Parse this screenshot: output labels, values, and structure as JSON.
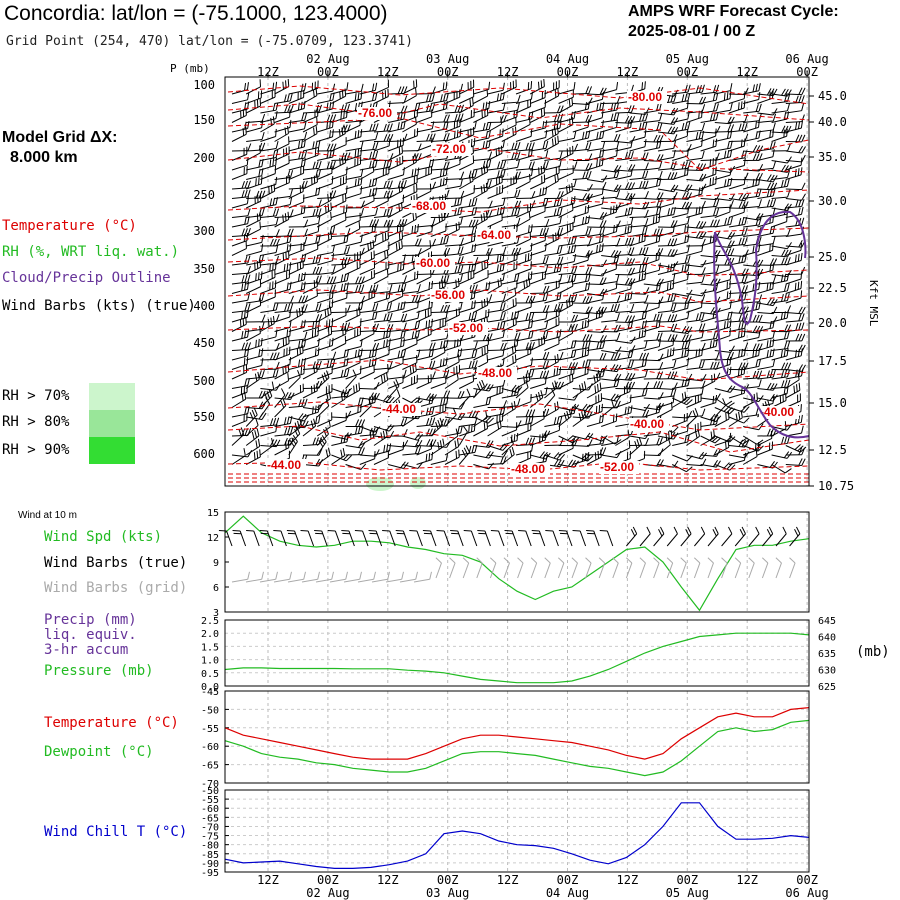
{
  "header": {
    "title": "Concordia:  lat/lon = (-75.1000, 123.4000)",
    "subtitle": "Grid Point (254, 470) lat/lon = (-75.0709, 123.3741)",
    "cycle_line1": "AMPS WRF Forecast Cycle:",
    "cycle_line2": "2025-08-01 / 00  Z",
    "grid_line1": "Model Grid ΔX:",
    "grid_line2": "8.000 km"
  },
  "legend": {
    "temperature": "Temperature (°C)",
    "rh": "RH (%, WRT liq. wat.)",
    "cloud": "Cloud/Precip Outline",
    "wind": "Wind Barbs (kts) (true)",
    "rh70": "RH > 70%",
    "rh80": "RH > 80%",
    "rh90": "RH > 90%",
    "rh_colors": [
      "#ccf5cc",
      "#99e699",
      "#33dd33"
    ]
  },
  "time_axis": {
    "top_dates": [
      "02 Aug",
      "03 Aug",
      "04 Aug",
      "05 Aug",
      "06 Aug"
    ],
    "top_times": [
      "12Z",
      "00Z",
      "12Z",
      "00Z",
      "12Z",
      "00Z",
      "12Z",
      "00Z",
      "12Z",
      "00Z"
    ],
    "bottom_times": [
      "12Z",
      "00Z",
      "12Z",
      "00Z",
      "12Z",
      "00Z",
      "12Z",
      "00Z",
      "12Z",
      "00Z"
    ],
    "bottom_dates": [
      "02 Aug",
      "03 Aug",
      "04 Aug",
      "05 Aug",
      "06 Aug"
    ]
  },
  "colors": {
    "temperature": "#dd0000",
    "rh": "#22bb22",
    "cloud": "#663399",
    "wind": "#000000",
    "wind_grid": "#aaaaaa",
    "wind_chill": "#0000cc",
    "grid": "#bbbbbb"
  },
  "chart_data": [
    {
      "type": "line",
      "panel": "cross-section",
      "y_axis_label": "P (mb)",
      "right_axis_label": "Kft MSL",
      "pressure_ticks": [
        "100",
        "150",
        "200",
        "250",
        "300",
        "350",
        "400",
        "450",
        "500",
        "550",
        "600"
      ],
      "height_ticks": [
        "45.0",
        "40.0",
        "35.0",
        "30.0",
        "25.0",
        "22.5",
        "20.0",
        "17.5",
        "15.0",
        "12.5",
        "10.75"
      ],
      "isotherm_labels": [
        "-80.00",
        "-76.00",
        "-72.00",
        "-68.00",
        "-64.00",
        "-60.00",
        "-56.00",
        "-52.00",
        "-48.00",
        "-44.00",
        "-40.00",
        "-40.00",
        "-44.00",
        "-48.00",
        "-52.00",
        "-40.00"
      ]
    },
    {
      "type": "line",
      "panel": "wind-10m",
      "label": "Wind at 10 m",
      "series": [
        {
          "name": "Wind Spd (kts)",
          "color": "#22bb22",
          "values": [
            12.5,
            14.5,
            12.5,
            11.5,
            11,
            10.8,
            11,
            11.5,
            11.5,
            11.3,
            10.8,
            10.5,
            10,
            9.8,
            9,
            7,
            5.5,
            4.5,
            5.5,
            6,
            7.5,
            9,
            10.5,
            10.8,
            9,
            6,
            3.2,
            7,
            10.5,
            11,
            11,
            11.5,
            11.8
          ]
        },
        {
          "name": "Wind Barbs (true)",
          "color": "#000000"
        },
        {
          "name": "Wind Barbs (grid)",
          "color": "#aaaaaa"
        }
      ],
      "y_ticks": [
        "15",
        "12",
        "9",
        "6",
        "3"
      ],
      "ylim": [
        3,
        15
      ]
    },
    {
      "type": "line",
      "panel": "precip-pressure",
      "series": [
        {
          "name": "Precip (mm) liq. equiv. 3-hr accum",
          "values": []
        },
        {
          "name": "Pressure (mb)",
          "color": "#22bb22",
          "values": [
            630.0,
            630.5,
            630.5,
            630.3,
            630.3,
            630.3,
            630.3,
            630.2,
            630.2,
            630.2,
            629.8,
            629.5,
            629.0,
            628.0,
            627.0,
            626.5,
            626.0,
            626.0,
            626.0,
            626.5,
            628.0,
            630.0,
            632.5,
            635.0,
            637.0,
            638.5,
            640.0,
            640.5,
            641.0,
            641.0,
            641.0,
            641.0,
            640.5
          ]
        }
      ],
      "left_ticks": [
        "2.5",
        "2.0",
        "1.5",
        "1.0",
        "0.5",
        "0.0"
      ],
      "right_ticks": [
        "645",
        "640",
        "635",
        "630",
        "625"
      ],
      "right_unit": "(mb)",
      "ylim_left": [
        0,
        2.5
      ],
      "ylim_right": [
        625,
        645
      ]
    },
    {
      "type": "line",
      "panel": "temperature",
      "series": [
        {
          "name": "Temperature (°C)",
          "color": "#dd0000",
          "values": [
            -55,
            -57,
            -58,
            -59,
            -60,
            -61,
            -62,
            -63,
            -63.5,
            -63.5,
            -63.5,
            -62,
            -60,
            -58,
            -57,
            -57,
            -57.5,
            -58,
            -58.5,
            -59,
            -60,
            -61,
            -62.5,
            -63.5,
            -62,
            -58,
            -55,
            -52,
            -51,
            -52,
            -52,
            -50,
            -49.5
          ]
        },
        {
          "name": "Dewpoint (°C)",
          "color": "#22bb22",
          "values": [
            -58.5,
            -60,
            -62,
            -63,
            -63.5,
            -64.5,
            -65,
            -66,
            -66.5,
            -67,
            -67,
            -66,
            -64,
            -62,
            -61.5,
            -61.5,
            -62,
            -62.5,
            -63.5,
            -64.5,
            -65.5,
            -66,
            -67,
            -68,
            -67,
            -64,
            -60,
            -56,
            -55,
            -56,
            -55.5,
            -53.5,
            -53
          ]
        }
      ],
      "y_ticks": [
        "-45",
        "-50",
        "-55",
        "-60",
        "-65",
        "-70"
      ],
      "ylim": [
        -70,
        -45
      ]
    },
    {
      "type": "line",
      "panel": "wind-chill",
      "series": [
        {
          "name": "Wind Chill T (°C)",
          "color": "#0000cc",
          "values": [
            -88,
            -90,
            -89.5,
            -89,
            -90.5,
            -92,
            -93,
            -93,
            -92.5,
            -91,
            -89,
            -85,
            -74,
            -72.5,
            -74,
            -78,
            -80,
            -80.5,
            -82,
            -85,
            -88.5,
            -90.5,
            -87,
            -80,
            -70,
            -57,
            -57,
            -70,
            -77,
            -77,
            -76.5,
            -75,
            -76
          ]
        }
      ],
      "y_ticks": [
        "-50",
        "-55",
        "-60",
        "-65",
        "-70",
        "-75",
        "-80",
        "-85",
        "-90",
        "-95"
      ],
      "ylim": [
        -95,
        -50
      ]
    }
  ]
}
